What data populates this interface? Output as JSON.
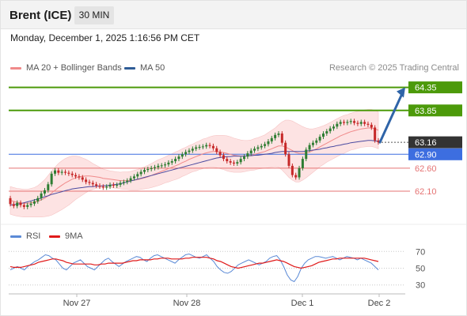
{
  "header": {
    "title": "Brent (ICE)",
    "interval": "30 MIN"
  },
  "timestamp": "Monday, December 1, 2025 1:16:56 PM CET",
  "legend": {
    "items": [
      {
        "label": "MA 20 + Bollinger Bands",
        "color": "#f08a8a"
      },
      {
        "label": "MA 50",
        "color": "#2f5c96"
      }
    ],
    "credit": "Research © 2025 Trading Central"
  },
  "rsi_legend": {
    "items": [
      {
        "label": "RSI",
        "color": "#5b8ad6"
      },
      {
        "label": "9MA",
        "color": "#e01a1a"
      }
    ]
  },
  "colors": {
    "resistance": "#4c9a0a",
    "support": "#e57373",
    "pivot": "#3d6ee0",
    "current": "#333333",
    "arrow": "#2f64a8",
    "bollinger_fill": "#fde3e3",
    "ma20": "#f08a8a",
    "ma50": "#4a4aa0",
    "bull_candle": "#2e7d32",
    "bear_candle": "#c62828"
  },
  "chart_data": {
    "type": "candlestick",
    "y_range": [
      61.45,
      64.6
    ],
    "x_ticks": [
      "Nov 27",
      "Nov 28",
      "Dec 1",
      "Dec 2"
    ],
    "levels": [
      {
        "value": 64.35,
        "label": "64.35",
        "kind": "resistance"
      },
      {
        "value": 63.85,
        "label": "63.85",
        "kind": "resistance"
      },
      {
        "value": 63.16,
        "label": "63.16",
        "kind": "current"
      },
      {
        "value": 62.9,
        "label": "62.90",
        "kind": "pivot"
      },
      {
        "value": 62.6,
        "label": "62.60",
        "kind": "support"
      },
      {
        "value": 62.1,
        "label": "62.10",
        "kind": "support"
      }
    ],
    "close": [
      61.82,
      61.78,
      61.85,
      61.8,
      61.76,
      61.8,
      61.83,
      61.88,
      61.95,
      62.05,
      62.12,
      62.25,
      62.48,
      62.55,
      62.5,
      62.52,
      62.5,
      62.48,
      62.45,
      62.42,
      62.4,
      62.35,
      62.3,
      62.28,
      62.25,
      62.22,
      62.2,
      62.18,
      62.2,
      62.24,
      62.22,
      62.24,
      62.28,
      62.3,
      62.33,
      62.38,
      62.42,
      62.47,
      62.52,
      62.56,
      62.58,
      62.6,
      62.62,
      62.65,
      62.66,
      62.68,
      62.72,
      62.75,
      62.8,
      62.85,
      62.9,
      62.95,
      62.98,
      63.02,
      63.05,
      63.06,
      63.07,
      63.1,
      63.08,
      63.03,
      62.95,
      62.88,
      62.8,
      62.75,
      62.72,
      62.7,
      62.73,
      62.8,
      62.85,
      62.92,
      62.98,
      63.02,
      63.05,
      63.08,
      63.12,
      63.18,
      63.25,
      63.32,
      63.35,
      63.15,
      62.9,
      62.65,
      62.45,
      62.4,
      62.6,
      62.8,
      63.0,
      63.1,
      63.15,
      63.2,
      63.28,
      63.35,
      63.4,
      63.46,
      63.5,
      63.56,
      63.6,
      63.58,
      63.6,
      63.62,
      63.58,
      63.56,
      63.6,
      63.56,
      63.54,
      63.48,
      63.2,
      63.16
    ],
    "open": [
      61.95,
      61.82,
      61.78,
      61.85,
      61.8,
      61.76,
      61.8,
      61.83,
      61.88,
      61.95,
      62.05,
      62.12,
      62.25,
      62.48,
      62.55,
      62.5,
      62.52,
      62.5,
      62.48,
      62.45,
      62.42,
      62.4,
      62.35,
      62.3,
      62.28,
      62.25,
      62.22,
      62.2,
      62.18,
      62.2,
      62.24,
      62.22,
      62.24,
      62.28,
      62.3,
      62.33,
      62.38,
      62.42,
      62.47,
      62.52,
      62.56,
      62.58,
      62.6,
      62.62,
      62.65,
      62.66,
      62.68,
      62.72,
      62.75,
      62.8,
      62.85,
      62.9,
      62.95,
      62.98,
      63.02,
      63.05,
      63.06,
      63.07,
      63.1,
      63.08,
      63.03,
      62.95,
      62.88,
      62.8,
      62.75,
      62.72,
      62.7,
      62.73,
      62.8,
      62.85,
      62.92,
      62.98,
      63.02,
      63.05,
      63.08,
      63.12,
      63.18,
      63.25,
      63.32,
      63.35,
      63.15,
      62.9,
      62.65,
      62.45,
      62.4,
      62.6,
      62.8,
      63.0,
      63.1,
      63.15,
      63.2,
      63.28,
      63.35,
      63.4,
      63.46,
      63.5,
      63.56,
      63.6,
      63.58,
      63.6,
      63.62,
      63.58,
      63.56,
      63.6,
      63.56,
      63.54,
      63.48,
      63.2
    ],
    "ma20": [
      61.9,
      61.88,
      61.86,
      61.85,
      61.84,
      61.84,
      61.85,
      61.86,
      61.88,
      61.91,
      61.95,
      62.0,
      62.06,
      62.12,
      62.18,
      62.23,
      62.28,
      62.32,
      62.36,
      62.39,
      62.41,
      62.42,
      62.43,
      62.43,
      62.42,
      62.41,
      62.4,
      62.38,
      62.37,
      62.36,
      62.35,
      62.34,
      62.33,
      62.33,
      62.33,
      62.33,
      62.34,
      62.35,
      62.37,
      62.39,
      62.41,
      62.44,
      62.47,
      62.5,
      62.53,
      62.56,
      62.59,
      62.62,
      62.65,
      62.68,
      62.72,
      62.75,
      62.79,
      62.82,
      62.85,
      62.88,
      62.91,
      62.93,
      62.95,
      62.96,
      62.96,
      62.95,
      62.94,
      62.92,
      62.9,
      62.88,
      62.87,
      62.86,
      62.86,
      62.87,
      62.88,
      62.9,
      62.92,
      62.94,
      62.96,
      62.99,
      63.02,
      63.05,
      63.08,
      63.08,
      63.06,
      63.02,
      62.98,
      62.94,
      62.92,
      62.92,
      62.93,
      62.95,
      62.98,
      63.02,
      63.06,
      63.1,
      63.14,
      63.18,
      63.22,
      63.26,
      63.3,
      63.33,
      63.36,
      63.39,
      63.41,
      63.43,
      63.45,
      63.46,
      63.47,
      63.47,
      63.45,
      63.42
    ],
    "bb_width": [
      0.3,
      0.3,
      0.3,
      0.3,
      0.3,
      0.3,
      0.31,
      0.32,
      0.34,
      0.37,
      0.4,
      0.44,
      0.48,
      0.5,
      0.52,
      0.53,
      0.53,
      0.52,
      0.5,
      0.47,
      0.44,
      0.4,
      0.36,
      0.32,
      0.28,
      0.25,
      0.22,
      0.2,
      0.19,
      0.18,
      0.18,
      0.18,
      0.18,
      0.19,
      0.19,
      0.2,
      0.21,
      0.22,
      0.23,
      0.24,
      0.25,
      0.26,
      0.27,
      0.28,
      0.28,
      0.28,
      0.29,
      0.29,
      0.3,
      0.3,
      0.3,
      0.3,
      0.3,
      0.3,
      0.31,
      0.31,
      0.32,
      0.32,
      0.33,
      0.34,
      0.35,
      0.36,
      0.37,
      0.38,
      0.38,
      0.37,
      0.36,
      0.35,
      0.34,
      0.33,
      0.33,
      0.34,
      0.34,
      0.35,
      0.36,
      0.38,
      0.4,
      0.42,
      0.46,
      0.52,
      0.58,
      0.62,
      0.64,
      0.64,
      0.62,
      0.58,
      0.54,
      0.5,
      0.47,
      0.45,
      0.43,
      0.42,
      0.41,
      0.41,
      0.41,
      0.41,
      0.41,
      0.41,
      0.4,
      0.4,
      0.4,
      0.4,
      0.4,
      0.4,
      0.4,
      0.4,
      0.4,
      0.4
    ],
    "ma50": [
      61.8,
      61.81,
      61.82,
      61.83,
      61.85,
      61.87,
      61.89,
      61.91,
      61.93,
      61.95,
      61.98,
      62.0,
      62.03,
      62.05,
      62.07,
      62.09,
      62.11,
      62.13,
      62.15,
      62.16,
      62.17,
      62.18,
      62.19,
      62.2,
      62.2,
      62.21,
      62.21,
      62.22,
      62.22,
      62.23,
      62.24,
      62.25,
      62.26,
      62.28,
      62.3,
      62.32,
      62.34,
      62.36,
      62.38,
      62.4,
      62.42,
      62.44,
      62.46,
      62.48,
      62.5,
      62.52,
      62.54,
      62.56,
      62.58,
      62.6,
      62.62,
      62.64,
      62.66,
      62.68,
      62.7,
      62.72,
      62.74,
      62.76,
      62.78,
      62.8,
      62.82,
      62.83,
      62.84,
      62.85,
      62.85,
      62.86,
      62.86,
      62.86,
      62.86,
      62.87,
      62.87,
      62.88,
      62.88,
      62.89,
      62.9,
      62.91,
      62.92,
      62.94,
      62.95,
      62.96,
      62.96,
      62.96,
      62.96,
      62.96,
      62.96,
      62.96,
      62.97,
      62.98,
      62.99,
      63.0,
      63.01,
      63.03,
      63.04,
      63.06,
      63.07,
      63.09,
      63.1,
      63.12,
      63.13,
      63.15,
      63.16,
      63.17,
      63.18,
      63.19,
      63.2,
      63.2,
      63.19,
      63.18
    ],
    "forecast_arrow": {
      "from": 63.16,
      "to": 64.35
    },
    "rsi": {
      "y_range": [
        25,
        75
      ],
      "ticks": [
        70,
        50,
        30
      ],
      "rsi": [
        48,
        50,
        52,
        50,
        48,
        52,
        55,
        58,
        60,
        63,
        66,
        65,
        62,
        60,
        55,
        50,
        48,
        52,
        56,
        58,
        60,
        56,
        52,
        50,
        48,
        52,
        56,
        60,
        62,
        58,
        55,
        52,
        55,
        58,
        60,
        62,
        64,
        63,
        60,
        58,
        62,
        65,
        66,
        64,
        62,
        60,
        58,
        56,
        60,
        63,
        66,
        67,
        65,
        63,
        62,
        64,
        66,
        62,
        58,
        52,
        48,
        45,
        44,
        46,
        50,
        54,
        56,
        58,
        60,
        58,
        56,
        54,
        56,
        58,
        62,
        64,
        65,
        60,
        52,
        42,
        36,
        34,
        40,
        50,
        56,
        60,
        62,
        64,
        64,
        63,
        62,
        63,
        64,
        62,
        60,
        62,
        64,
        63,
        62,
        60,
        62,
        60,
        58,
        56,
        52,
        48
      ],
      "ma9": [
        52,
        51,
        51,
        51,
        52,
        53,
        54,
        55,
        57,
        58,
        59,
        60,
        61,
        61,
        60,
        59,
        57,
        56,
        55,
        55,
        55,
        55,
        55,
        55,
        54,
        54,
        55,
        55,
        56,
        56,
        56,
        56,
        56,
        57,
        58,
        59,
        59,
        60,
        60,
        60,
        60,
        61,
        61,
        62,
        62,
        62,
        61,
        61,
        61,
        61,
        62,
        62,
        63,
        63,
        63,
        63,
        63,
        62,
        61,
        59,
        58,
        56,
        54,
        52,
        51,
        50,
        51,
        52,
        53,
        54,
        55,
        56,
        56,
        57,
        58,
        59,
        60,
        59,
        58,
        56,
        54,
        52,
        51,
        50,
        51,
        52,
        53,
        55,
        57,
        58,
        59,
        60,
        61,
        61,
        62,
        62,
        62,
        62,
        62,
        62,
        62,
        62,
        61,
        60,
        59,
        58
      ]
    }
  }
}
